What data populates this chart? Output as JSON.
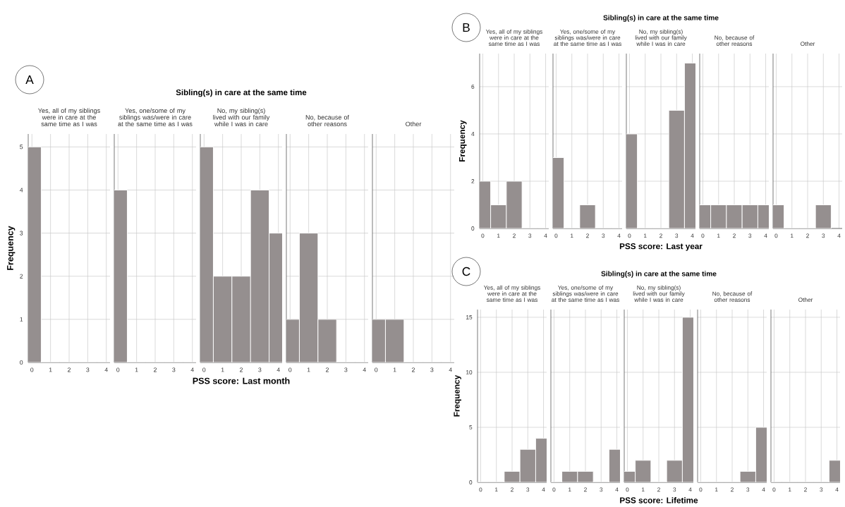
{
  "chart_data": [
    {
      "type": "bar",
      "subtitle": "Yes, all of my siblings were in care at the same time as I was",
      "ylabel": "Frequency",
      "annotations": [
        "A"
      ],
      "x": [
        0,
        1,
        2,
        3,
        4
      ],
      "values": [
        5,
        0,
        0,
        0,
        0
      ],
      "color": "#958f8f",
      "xlim": [
        -0.2,
        4.2
      ],
      "xticks": [
        0,
        1,
        2,
        3,
        4
      ],
      "ylim": [
        0,
        5.3
      ],
      "yticks": [
        0,
        1,
        2,
        3,
        4,
        5
      ],
      "grid": true
    },
    {
      "type": "bar",
      "subtitle": "Yes, one/some of my siblings was/were in care at the same time as I was",
      "x": [
        0,
        1,
        2,
        3,
        4
      ],
      "values": [
        4,
        0,
        0,
        0,
        0
      ],
      "color": "#958f8f",
      "xlim": [
        -0.2,
        4.2
      ],
      "xticks": [
        0,
        1,
        2,
        3,
        4
      ],
      "ylim": [
        0,
        5.3
      ],
      "yticks": [
        0,
        1,
        2,
        3,
        4,
        5
      ],
      "grid": true,
      "tick_labels": "x"
    },
    {
      "type": "bar",
      "title": "Sibling(s) in care at the same time",
      "subtitle": "No, my sibling(s) lived with our family while I was in care",
      "xlabel": "PSS score: Last month",
      "x": [
        0,
        1,
        2,
        3,
        4
      ],
      "values": [
        5,
        2,
        2,
        4,
        3
      ],
      "color": "#958f8f",
      "xlim": [
        -0.2,
        4.2
      ],
      "xticks": [
        0,
        1,
        2,
        3,
        4
      ],
      "ylim": [
        0,
        5.3
      ],
      "yticks": [
        0,
        1,
        2,
        3,
        4,
        5
      ],
      "grid": true,
      "tick_labels": "x"
    },
    {
      "type": "bar",
      "subtitle": "No, because of other reasons",
      "x": [
        0,
        1,
        2,
        3,
        4
      ],
      "values": [
        1,
        3,
        1,
        0,
        0
      ],
      "color": "#958f8f",
      "xlim": [
        -0.2,
        4.2
      ],
      "xticks": [
        0,
        1,
        2,
        3,
        4
      ],
      "ylim": [
        0,
        5.3
      ],
      "yticks": [
        0,
        1,
        2,
        3,
        4,
        5
      ],
      "grid": true,
      "tick_labels": "x"
    },
    {
      "type": "bar",
      "subtitle": "Other",
      "x": [
        0,
        1,
        2,
        3,
        4
      ],
      "values": [
        1,
        1,
        0,
        0,
        0
      ],
      "color": "#958f8f",
      "xlim": [
        -0.2,
        4.2
      ],
      "xticks": [
        0,
        1,
        2,
        3,
        4
      ],
      "ylim": [
        0,
        5.3
      ],
      "yticks": [
        0,
        1,
        2,
        3,
        4,
        5
      ],
      "grid": true,
      "tick_labels": "x"
    },
    {
      "type": "bar",
      "subtitle": "Yes, all of my siblings were in care at the same time as I was",
      "ylabel": "Frequency",
      "annotations": [
        "B"
      ],
      "x": [
        0,
        1,
        2,
        3,
        4
      ],
      "values": [
        2,
        1,
        2,
        0,
        0
      ],
      "color": "#958f8f",
      "xlim": [
        -0.2,
        4.2
      ],
      "xticks": [
        0,
        1,
        2,
        3,
        4
      ],
      "ylim": [
        0,
        7.4
      ],
      "yticks": [
        0,
        2,
        4,
        6
      ],
      "grid": true
    },
    {
      "type": "bar",
      "subtitle": "Yes, one/some of my siblings was/were in care at the same time as I was",
      "x": [
        0,
        1,
        2,
        3,
        4
      ],
      "values": [
        3,
        0,
        1,
        0,
        0
      ],
      "color": "#958f8f",
      "xlim": [
        -0.2,
        4.2
      ],
      "xticks": [
        0,
        1,
        2,
        3,
        4
      ],
      "ylim": [
        0,
        7.4
      ],
      "yticks": [
        0,
        2,
        4,
        6
      ],
      "grid": true,
      "tick_labels": "x"
    },
    {
      "type": "bar",
      "title": "Sibling(s) in care at the same time",
      "subtitle": "No, my sibling(s) lived with our family while I was in care",
      "xlabel": "PSS score: Last year",
      "x": [
        0,
        1,
        2,
        3,
        4
      ],
      "values": [
        4,
        0,
        0,
        5,
        7
      ],
      "color": "#958f8f",
      "xlim": [
        -0.2,
        4.2
      ],
      "xticks": [
        0,
        1,
        2,
        3,
        4
      ],
      "ylim": [
        0,
        7.4
      ],
      "yticks": [
        0,
        2,
        4,
        6
      ],
      "grid": true,
      "tick_labels": "x"
    },
    {
      "type": "bar",
      "subtitle": "No, because of other reasons",
      "x": [
        0,
        1,
        2,
        3,
        4
      ],
      "values": [
        1,
        1,
        1,
        1,
        1
      ],
      "color": "#958f8f",
      "xlim": [
        -0.2,
        4.2
      ],
      "xticks": [
        0,
        1,
        2,
        3,
        4
      ],
      "ylim": [
        0,
        7.4
      ],
      "yticks": [
        0,
        2,
        4,
        6
      ],
      "grid": true,
      "tick_labels": "x"
    },
    {
      "type": "bar",
      "subtitle": "Other",
      "x": [
        0,
        1,
        2,
        3
      ],
      "values": [
        1,
        0,
        0,
        1
      ],
      "color": "#958f8f",
      "xlim": [
        -0.2,
        4.2
      ],
      "xticks": [
        0,
        1,
        2,
        3,
        4
      ],
      "ylim": [
        0,
        7.4
      ],
      "yticks": [
        0,
        2,
        4,
        6
      ],
      "grid": true,
      "tick_labels": "x"
    },
    {
      "type": "bar",
      "subtitle": "Yes, all of my siblings were in care at the same time as I was",
      "ylabel": "Frequency",
      "annotations": [
        "C"
      ],
      "x": [
        0,
        1,
        2,
        3,
        4
      ],
      "values": [
        0,
        0,
        1,
        3,
        4
      ],
      "color": "#958f8f",
      "xlim": [
        -0.2,
        4.2
      ],
      "xticks": [
        0,
        1,
        2,
        3,
        4
      ],
      "ylim": [
        0,
        15.7
      ],
      "yticks": [
        0,
        5,
        10,
        15
      ],
      "grid": true
    },
    {
      "type": "bar",
      "subtitle": "Yes, one/some of my siblings was/were in care at the same time as I was",
      "x": [
        0,
        1,
        2,
        3,
        4
      ],
      "values": [
        0,
        1,
        1,
        0,
        3
      ],
      "color": "#958f8f",
      "xlim": [
        -0.2,
        4.2
      ],
      "xticks": [
        0,
        1,
        2,
        3,
        4
      ],
      "ylim": [
        0,
        15.7
      ],
      "yticks": [
        0,
        5,
        10,
        15
      ],
      "grid": true,
      "tick_labels": "x"
    },
    {
      "type": "bar",
      "title": "Sibling(s) in care at the same time",
      "subtitle": "No, my sibling(s) lived with our family while I was in care",
      "xlabel": "PSS score: Lifetime",
      "x": [
        0,
        1,
        2,
        3,
        4
      ],
      "values": [
        1,
        2,
        0,
        2,
        15
      ],
      "color": "#958f8f",
      "xlim": [
        -0.2,
        4.2
      ],
      "xticks": [
        0,
        1,
        2,
        3,
        4
      ],
      "ylim": [
        0,
        15.7
      ],
      "yticks": [
        0,
        5,
        10,
        15
      ],
      "grid": true,
      "tick_labels": "x"
    },
    {
      "type": "bar",
      "subtitle": "No, because of other reasons",
      "x": [
        0,
        1,
        2,
        3,
        4
      ],
      "values": [
        0,
        0,
        0,
        1,
        5
      ],
      "color": "#958f8f",
      "xlim": [
        -0.2,
        4.2
      ],
      "xticks": [
        0,
        1,
        2,
        3,
        4
      ],
      "ylim": [
        0,
        15.7
      ],
      "yticks": [
        0,
        5,
        10,
        15
      ],
      "grid": true,
      "tick_labels": "x"
    },
    {
      "type": "bar",
      "subtitle": "Other",
      "x": [
        0,
        1,
        2,
        3,
        4
      ],
      "values": [
        0,
        0,
        0,
        0,
        2
      ],
      "color": "#958f8f",
      "xlim": [
        -0.2,
        4.2
      ],
      "xticks": [
        0,
        1,
        2,
        3,
        4
      ],
      "ylim": [
        0,
        15.7
      ],
      "yticks": [
        0,
        5,
        10,
        15
      ],
      "grid": true,
      "tick_labels": "x"
    }
  ]
}
